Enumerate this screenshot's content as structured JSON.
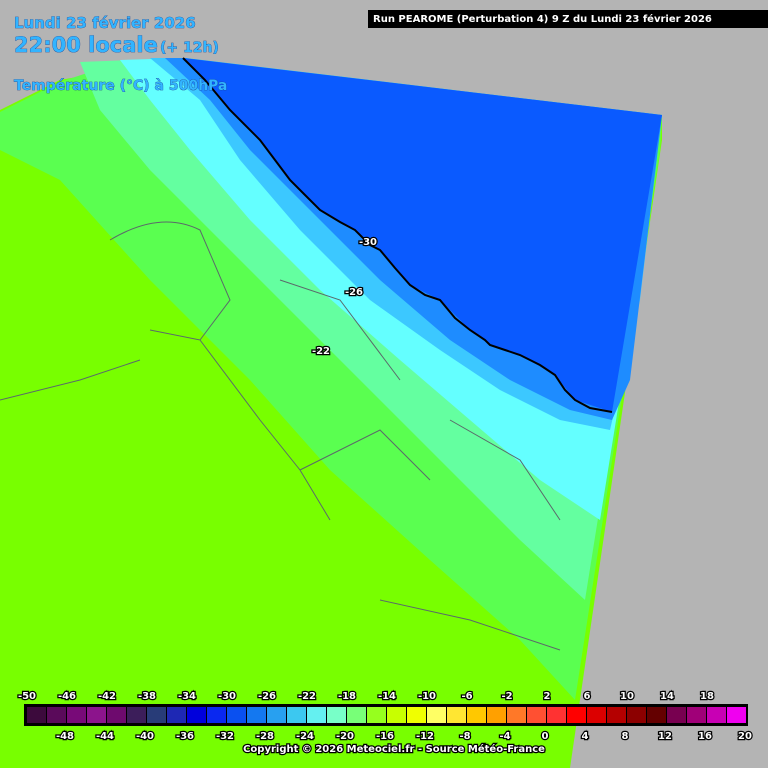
{
  "header": {
    "date": "Lundi 23 février 2026",
    "time": "22:00 locale",
    "lead": "(+ 12h)",
    "field": "Température (°C) à 500hPa",
    "run": "Run PEAROME (Perturbation 4) 9 Z du Lundi 23 février 2026"
  },
  "contour_labels": [
    -30,
    -26,
    -22
  ],
  "legend": {
    "values": [
      -50,
      -48,
      -46,
      -44,
      -42,
      -40,
      -38,
      -36,
      -34,
      -32,
      -30,
      -28,
      -26,
      -24,
      -22,
      -20,
      -18,
      -16,
      -14,
      -12,
      -10,
      -8,
      -6,
      -4,
      -2,
      0,
      2,
      4,
      6,
      8,
      10,
      12,
      14,
      16,
      18,
      20
    ],
    "colors": [
      "#3c0a3c",
      "#5a0a5a",
      "#780a78",
      "#8c148c",
      "#6e0a6e",
      "#3c1e5a",
      "#283c78",
      "#1e28b4",
      "#0000dc",
      "#0a28f0",
      "#0a50f0",
      "#1478f0",
      "#28a0f0",
      "#3cc8f0",
      "#64f0f0",
      "#78ffc8",
      "#78ff78",
      "#96ff1e",
      "#c8ff00",
      "#f0ff00",
      "#ffff64",
      "#ffe632",
      "#ffc800",
      "#ffa000",
      "#ff7828",
      "#ff5032",
      "#ff3232",
      "#ff0000",
      "#dc0000",
      "#b40000",
      "#8c0000",
      "#640000",
      "#780050",
      "#a00078",
      "#c800b4",
      "#f000f0"
    ]
  },
  "copyright": "Copyright © 2026 Meteociel.fr - Source Météo-France"
}
